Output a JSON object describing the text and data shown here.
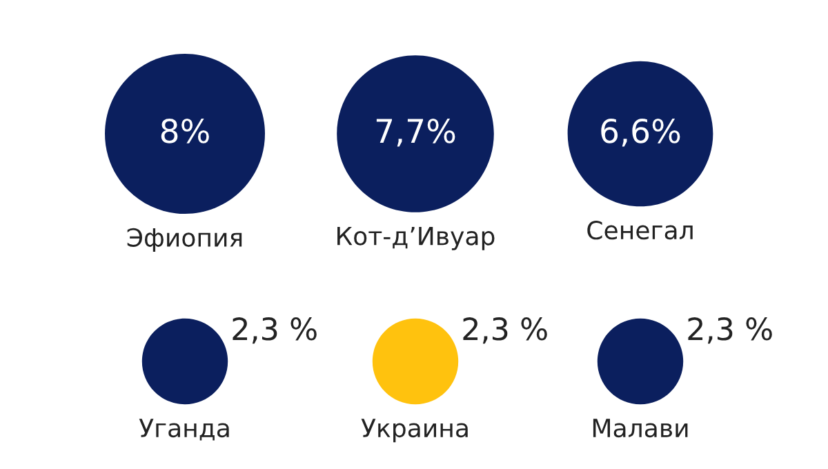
{
  "chart_data": {
    "type": "other",
    "categories": [
      "Эфиопия",
      "Кот-д’Ивуар",
      "Сенегал",
      "Уганда",
      "Украина",
      "Малави"
    ],
    "values": [
      8,
      7.7,
      6.6,
      2.3,
      2.3,
      2.3
    ],
    "value_labels": [
      "8%",
      "7,7%",
      "6,6%",
      "2,3 %",
      "2,3 %",
      "2,3 %"
    ],
    "colors": [
      "#0b1f5e",
      "#0b1f5e",
      "#0b1f5e",
      "#0b1f5e",
      "#ffc20e",
      "#0b1f5e"
    ]
  }
}
